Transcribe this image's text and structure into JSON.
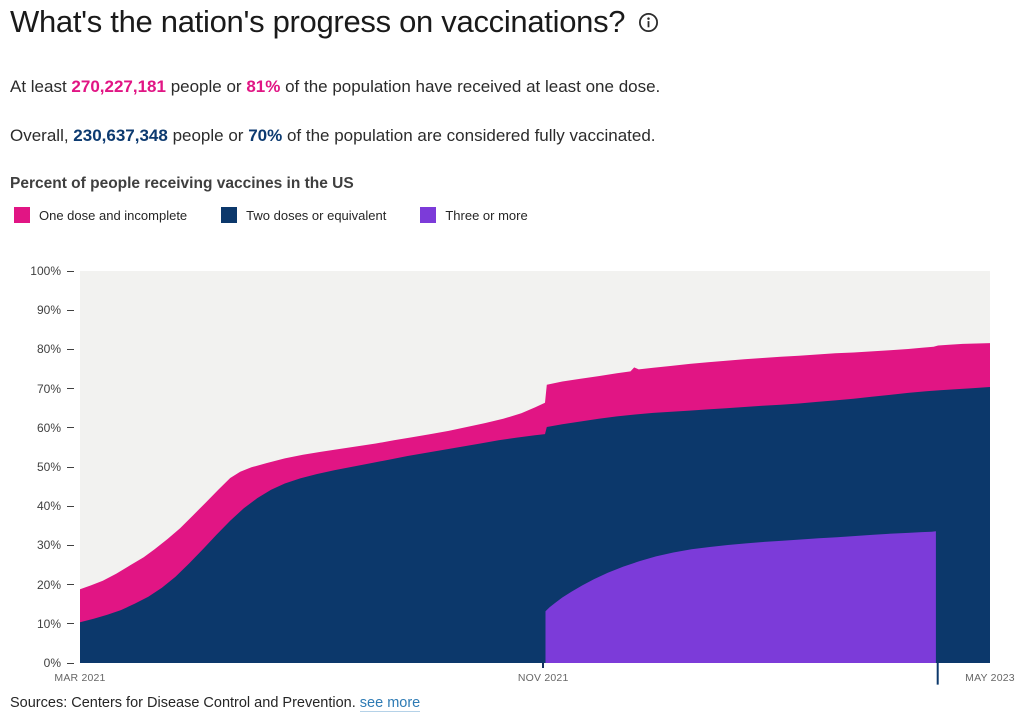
{
  "header": {
    "title": "What's the nation's progress on vaccinations?"
  },
  "summary": [
    {
      "prefix": "At least ",
      "value": "270,227,181",
      "mid": " people or ",
      "pct": "81%",
      "suffix": " of the population have received at least one dose.",
      "highlight_color": "#e11584"
    },
    {
      "prefix": "Overall, ",
      "value": "230,637,348",
      "mid": " people or ",
      "pct": "70%",
      "suffix": " of the population are considered fully vaccinated.",
      "highlight_color": "#0c3a70"
    }
  ],
  "chart": {
    "heading": "Percent of people receiving vaccines in the US"
  },
  "chart_data": {
    "type": "area",
    "title": "Percent of people receiving vaccines in the US",
    "legend_position": "above-chart",
    "grid": "off",
    "plot_background": "#f2f2f0",
    "x_axis": {
      "labels": [
        "MAR 2021",
        "NOV 2021",
        "MAY 2023"
      ],
      "label_positions": [
        0,
        0.509,
        1
      ],
      "tick_mark_positions": [
        0.509
      ]
    },
    "y_axis": {
      "min": 0,
      "max": 100,
      "unit": "%",
      "tick_labels": [
        "100%",
        "90%",
        "80%",
        "70%",
        "60%",
        "50%",
        "40%",
        "30%",
        "20%",
        "10%",
        "0%"
      ]
    },
    "series": [
      {
        "name": "One dose and incomplete",
        "color": "#e11584",
        "points": [
          [
            0.0,
            18.8
          ],
          [
            0.012,
            19.8
          ],
          [
            0.025,
            21.0
          ],
          [
            0.04,
            22.8
          ],
          [
            0.055,
            24.9
          ],
          [
            0.07,
            27.0
          ],
          [
            0.082,
            29.0
          ],
          [
            0.096,
            31.6
          ],
          [
            0.11,
            34.4
          ],
          [
            0.124,
            37.6
          ],
          [
            0.138,
            40.9
          ],
          [
            0.152,
            44.2
          ],
          [
            0.165,
            47.2
          ],
          [
            0.176,
            48.8
          ],
          [
            0.188,
            49.9
          ],
          [
            0.205,
            51.0
          ],
          [
            0.225,
            52.2
          ],
          [
            0.245,
            53.1
          ],
          [
            0.265,
            53.9
          ],
          [
            0.285,
            54.6
          ],
          [
            0.305,
            55.3
          ],
          [
            0.325,
            56.0
          ],
          [
            0.345,
            56.8
          ],
          [
            0.365,
            57.6
          ],
          [
            0.385,
            58.4
          ],
          [
            0.405,
            59.2
          ],
          [
            0.425,
            60.2
          ],
          [
            0.445,
            61.2
          ],
          [
            0.465,
            62.3
          ],
          [
            0.485,
            63.7
          ],
          [
            0.5,
            65.2
          ],
          [
            0.511,
            66.4
          ],
          [
            0.513,
            71.0
          ],
          [
            0.53,
            71.8
          ],
          [
            0.55,
            72.5
          ],
          [
            0.57,
            73.2
          ],
          [
            0.59,
            73.9
          ],
          [
            0.605,
            74.4
          ],
          [
            0.609,
            75.4
          ],
          [
            0.614,
            74.9
          ],
          [
            0.63,
            75.3
          ],
          [
            0.65,
            75.8
          ],
          [
            0.67,
            76.3
          ],
          [
            0.69,
            76.7
          ],
          [
            0.71,
            77.1
          ],
          [
            0.73,
            77.5
          ],
          [
            0.75,
            77.8
          ],
          [
            0.77,
            78.1
          ],
          [
            0.79,
            78.4
          ],
          [
            0.81,
            78.7
          ],
          [
            0.83,
            79.0
          ],
          [
            0.85,
            79.2
          ],
          [
            0.87,
            79.5
          ],
          [
            0.89,
            79.8
          ],
          [
            0.91,
            80.1
          ],
          [
            0.925,
            80.4
          ],
          [
            0.938,
            80.7
          ],
          [
            0.943,
            81.0
          ],
          [
            0.955,
            81.2
          ],
          [
            0.97,
            81.4
          ],
          [
            0.985,
            81.5
          ],
          [
            1.0,
            81.6
          ]
        ]
      },
      {
        "name": "Two doses or equivalent",
        "color": "#0c386b",
        "points": [
          [
            0.0,
            10.4
          ],
          [
            0.015,
            11.3
          ],
          [
            0.03,
            12.3
          ],
          [
            0.045,
            13.5
          ],
          [
            0.06,
            15.1
          ],
          [
            0.075,
            16.9
          ],
          [
            0.09,
            19.2
          ],
          [
            0.105,
            22.0
          ],
          [
            0.12,
            25.4
          ],
          [
            0.135,
            29.0
          ],
          [
            0.15,
            32.7
          ],
          [
            0.165,
            36.3
          ],
          [
            0.18,
            39.5
          ],
          [
            0.195,
            42.1
          ],
          [
            0.21,
            44.2
          ],
          [
            0.225,
            45.8
          ],
          [
            0.242,
            47.1
          ],
          [
            0.26,
            48.2
          ],
          [
            0.28,
            49.2
          ],
          [
            0.3,
            50.1
          ],
          [
            0.32,
            51.0
          ],
          [
            0.34,
            51.9
          ],
          [
            0.36,
            52.8
          ],
          [
            0.38,
            53.6
          ],
          [
            0.4,
            54.4
          ],
          [
            0.42,
            55.2
          ],
          [
            0.44,
            56.0
          ],
          [
            0.46,
            56.8
          ],
          [
            0.48,
            57.5
          ],
          [
            0.5,
            58.1
          ],
          [
            0.511,
            58.4
          ],
          [
            0.513,
            60.2
          ],
          [
            0.53,
            60.9
          ],
          [
            0.55,
            61.6
          ],
          [
            0.57,
            62.3
          ],
          [
            0.59,
            62.9
          ],
          [
            0.61,
            63.4
          ],
          [
            0.63,
            63.8
          ],
          [
            0.65,
            64.1
          ],
          [
            0.67,
            64.4
          ],
          [
            0.69,
            64.7
          ],
          [
            0.71,
            65.0
          ],
          [
            0.73,
            65.3
          ],
          [
            0.75,
            65.6
          ],
          [
            0.77,
            65.9
          ],
          [
            0.79,
            66.2
          ],
          [
            0.81,
            66.6
          ],
          [
            0.83,
            67.0
          ],
          [
            0.85,
            67.4
          ],
          [
            0.87,
            67.9
          ],
          [
            0.89,
            68.4
          ],
          [
            0.91,
            68.9
          ],
          [
            0.93,
            69.3
          ],
          [
            0.945,
            69.6
          ],
          [
            0.96,
            69.8
          ],
          [
            0.98,
            70.1
          ],
          [
            1.0,
            70.4
          ]
        ]
      },
      {
        "name": "Three or more",
        "color": "#7c3bd9",
        "points": [
          [
            0.5115,
            13.2
          ],
          [
            0.516,
            14.2
          ],
          [
            0.522,
            15.3
          ],
          [
            0.53,
            16.7
          ],
          [
            0.54,
            18.2
          ],
          [
            0.552,
            19.8
          ],
          [
            0.565,
            21.4
          ],
          [
            0.58,
            23.0
          ],
          [
            0.597,
            24.6
          ],
          [
            0.615,
            26.0
          ],
          [
            0.633,
            27.2
          ],
          [
            0.652,
            28.2
          ],
          [
            0.672,
            29.0
          ],
          [
            0.692,
            29.6
          ],
          [
            0.712,
            30.1
          ],
          [
            0.732,
            30.5
          ],
          [
            0.752,
            30.9
          ],
          [
            0.772,
            31.2
          ],
          [
            0.792,
            31.5
          ],
          [
            0.812,
            31.8
          ],
          [
            0.832,
            32.1
          ],
          [
            0.852,
            32.4
          ],
          [
            0.872,
            32.7
          ],
          [
            0.892,
            33.0
          ],
          [
            0.91,
            33.2
          ],
          [
            0.925,
            33.4
          ],
          [
            0.936,
            33.5
          ],
          [
            0.9405,
            33.6
          ]
        ]
      }
    ],
    "annotations": {
      "data_glitch_line": {
        "x": 0.9425,
        "from_pct": 37.3,
        "to_pct": -5.5,
        "color": "#0c386b"
      }
    }
  },
  "source": {
    "text": "Sources: Centers for Disease Control and Prevention.",
    "link_label": "see more"
  }
}
